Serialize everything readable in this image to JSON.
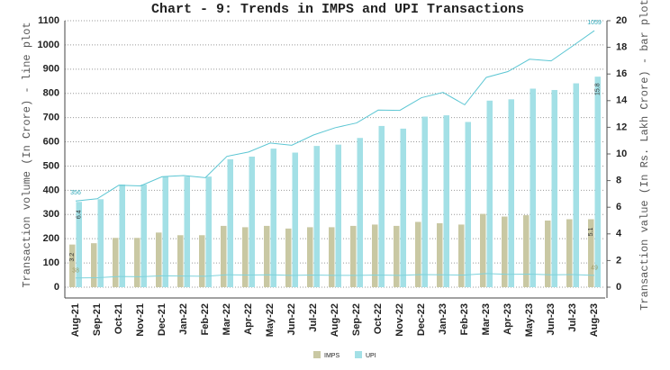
{
  "chart_data": {
    "type": "bar_line_dual_axis",
    "title": "Chart - 9: Trends in IMPS and UPI Transactions",
    "y_label": "Transaction volume (In Crore) - line plot",
    "y2_label": "Transaction value (In Rs. Lakh Crore) - bar plot",
    "categories": [
      "Aug-21",
      "Sep-21",
      "Oct-21",
      "Nov-21",
      "Dec-21",
      "Jan-22",
      "Feb-22",
      "Mar-22",
      "Apr-22",
      "May-22",
      "Jun-22",
      "Jul-22",
      "Aug-22",
      "Sep-22",
      "Oct-22",
      "Nov-22",
      "Dec-22",
      "Jan-23",
      "Feb-23",
      "Mar-23",
      "Apr-23",
      "May-23",
      "Jun-23",
      "Jul-23",
      "Aug-23"
    ],
    "bar_series": [
      {
        "name": "IMPS",
        "color": "#c9c8a3",
        "axis": "y2",
        "values": [
          3.2,
          3.3,
          3.7,
          3.7,
          4.1,
          3.9,
          3.9,
          4.6,
          4.5,
          4.6,
          4.4,
          4.5,
          4.5,
          4.6,
          4.7,
          4.6,
          4.9,
          4.8,
          4.7,
          5.5,
          5.3,
          5.4,
          5.0,
          5.1,
          5.1
        ]
      },
      {
        "name": "UPI",
        "color": "#a3e0e6",
        "axis": "y2",
        "values": [
          6.4,
          6.6,
          7.7,
          7.7,
          8.3,
          8.3,
          8.3,
          9.6,
          9.8,
          10.4,
          10.1,
          10.6,
          10.7,
          11.2,
          12.1,
          11.9,
          12.8,
          12.9,
          12.4,
          14.0,
          14.1,
          14.9,
          14.8,
          15.3,
          15.8
        ]
      }
    ],
    "line_series": [
      {
        "name": "IMPS",
        "color": "#7fd3dc",
        "values": [
          38,
          39,
          44,
          43,
          47,
          46,
          45,
          51,
          50,
          51,
          49,
          50,
          49,
          49,
          50,
          49,
          52,
          51,
          50,
          56,
          53,
          54,
          51,
          52,
          49
        ]
      },
      {
        "name": "UPI",
        "color": "#5cc6d3",
        "values": [
          356,
          365,
          421,
          418,
          456,
          461,
          452,
          540,
          558,
          595,
          586,
          628,
          658,
          678,
          731,
          730,
          782,
          804,
          753,
          866,
          890,
          941,
          934,
          996,
          1059
        ]
      }
    ],
    "ylim": [
      0,
      1100
    ],
    "yticks": [
      0,
      100,
      200,
      300,
      400,
      500,
      600,
      700,
      800,
      900,
      1000,
      1100
    ],
    "y2lim": [
      0,
      20
    ],
    "y2ticks": [
      0,
      2,
      4,
      6,
      8,
      10,
      12,
      14,
      16,
      18,
      20
    ],
    "grid": true
  }
}
